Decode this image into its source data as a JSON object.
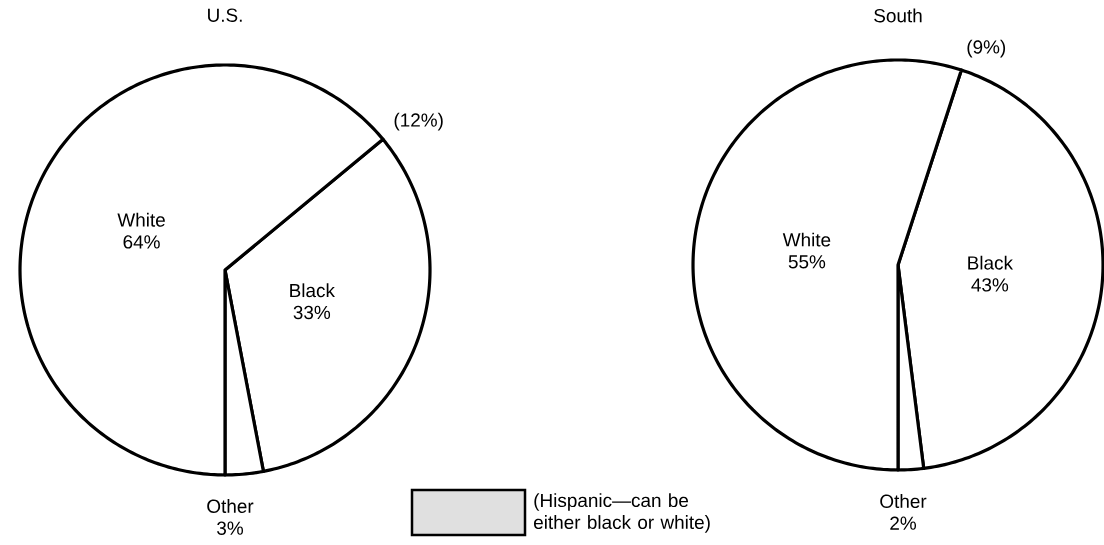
{
  "chart_data": [
    {
      "type": "pie",
      "title": "U.S.",
      "categories": [
        "Black",
        "Other",
        "White"
      ],
      "values": [
        33,
        3,
        64
      ],
      "value_labels": [
        "33%",
        "3%",
        "64%"
      ],
      "colors": [
        "#ffffff",
        "#ffffff",
        "#ffffff"
      ],
      "annotations": [
        "(12%)",
        "(Hispanic—can be either black or white)"
      ]
    },
    {
      "type": "pie",
      "title": "South",
      "categories": [
        "Black",
        "Other",
        "White"
      ],
      "values": [
        43,
        2,
        55
      ],
      "value_labels": [
        "43%",
        "2%",
        "55%"
      ],
      "colors": [
        "#ffffff",
        "#ffffff",
        "#ffffff"
      ],
      "annotations": [
        "(9%)"
      ]
    }
  ]
}
